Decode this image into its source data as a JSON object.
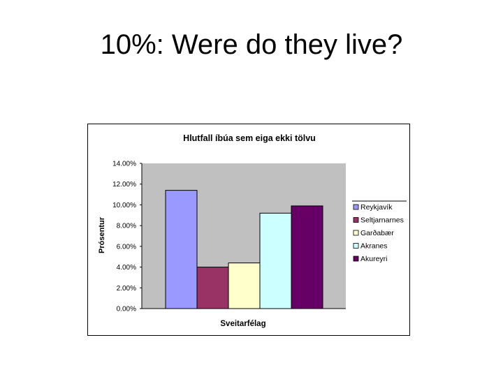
{
  "slide": {
    "title": "10%: Were do they live?"
  },
  "chart_data": {
    "type": "bar",
    "title": "Hlutfall íbúa sem eiga ekki tölvu",
    "xlabel": "Sveitarfélag",
    "ylabel": "Prósentur",
    "ylim": [
      0,
      0.14
    ],
    "yticks": [
      0,
      0.02,
      0.04,
      0.06,
      0.08,
      0.1,
      0.12,
      0.14
    ],
    "ytick_labels": [
      "0.00%",
      "2.00%",
      "4.00%",
      "6.00%",
      "8.00%",
      "10.00%",
      "12.00%",
      "14.00%"
    ],
    "grid": false,
    "legend_position": "right",
    "plot_background": "#c0c0c0",
    "series": [
      {
        "name": "Reykjavík",
        "value": 0.114,
        "color": "#9999ff"
      },
      {
        "name": "Seltjarnarnes",
        "value": 0.04,
        "color": "#993366"
      },
      {
        "name": "Garðabær",
        "value": 0.044,
        "color": "#ffffcc"
      },
      {
        "name": "Akranes",
        "value": 0.092,
        "color": "#ccffff"
      },
      {
        "name": "Akureyri",
        "value": 0.099,
        "color": "#660066"
      }
    ]
  }
}
